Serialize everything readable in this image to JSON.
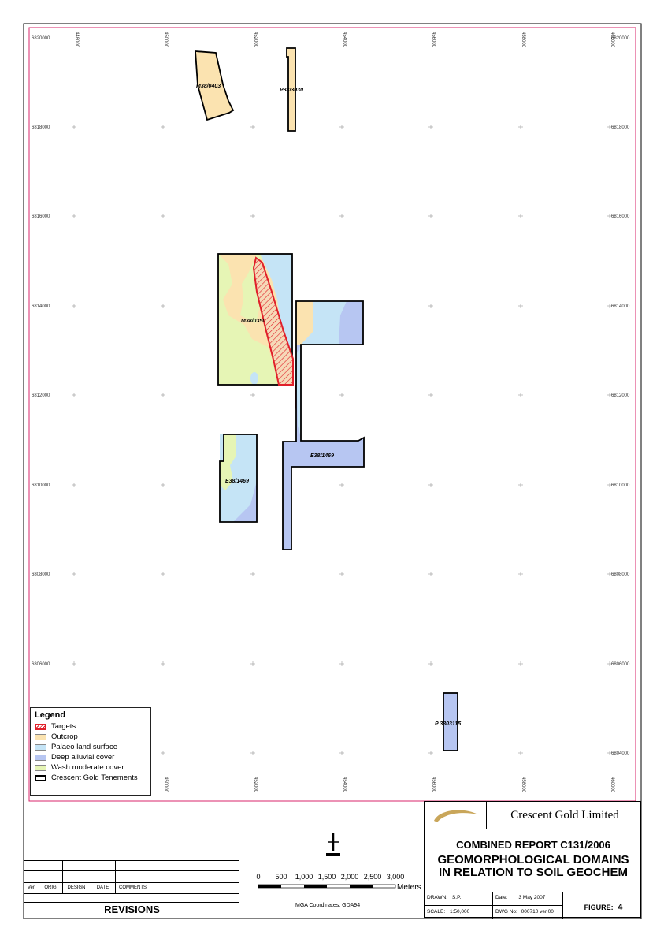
{
  "map": {
    "northing_labels": [
      "6820000",
      "6818000",
      "6816000",
      "6814000",
      "6812000",
      "6810000",
      "6808000",
      "6806000",
      "6804000"
    ],
    "easting_labels": [
      "448000",
      "450000",
      "452000",
      "454000",
      "456000",
      "458000",
      "460000"
    ],
    "tenement_labels": {
      "m38_0403": "M38/0403",
      "p38_3030": "P38/3030",
      "m38_0350": "M38/0350",
      "e38_1469_east": "E38/1469",
      "e38_1469_west": "E38/1469",
      "p_3803115": "P 3803115"
    },
    "colors": {
      "outcrop": "#fbe3b0",
      "palaeo": "#c5e4f6",
      "deep_alluvial": "#b7c6f2",
      "wash": "#e6f5b5",
      "target": "#e0202a",
      "frame": "#d9246b"
    }
  },
  "legend": {
    "title": "Legend",
    "items": [
      {
        "label": "Targets",
        "color": "#f7c6c6",
        "border": "#e0202a"
      },
      {
        "label": "Outcrop",
        "color": "#fbe3b0",
        "border": "#888"
      },
      {
        "label": "Palaeo land surface",
        "color": "#c5e4f6",
        "border": "#888"
      },
      {
        "label": "Deep alluvial cover",
        "color": "#b7c6f2",
        "border": "#888"
      },
      {
        "label": "Wash moderate cover",
        "color": "#e6f5b5",
        "border": "#888"
      },
      {
        "label": "Crescent Gold Tenements",
        "color": "#ffffff",
        "border": "#000"
      }
    ]
  },
  "scalebar": {
    "ticks": [
      "0",
      "500",
      "1,000",
      "1,500",
      "2,000",
      "2,500",
      "3,000"
    ],
    "unit": "Meters",
    "coords": "MGA Coordinates, GDA94"
  },
  "revisions": {
    "headers": [
      "Ver.",
      "ORIG",
      "DESIGN",
      "DATE",
      "COMMENTS"
    ],
    "title": "REVISIONS"
  },
  "title_block": {
    "company": "Crescent Gold Limited",
    "report": "COMBINED REPORT C131/2006",
    "title_line1": "GEOMORPHOLOGICAL DOMAINS",
    "title_line2": "IN RELATION TO SOIL GEOCHEM",
    "drawn_label": "DRAWN:",
    "drawn_value": "S.P.",
    "scale_label": "SCALE:",
    "scale_value": "1:50,000",
    "date_label": "Date:",
    "date_value": "3 May 2007",
    "dwg_label": "DWG No:",
    "dwg_value": "000710 ver.00",
    "figure_label": "FIGURE:",
    "figure_value": "4"
  }
}
